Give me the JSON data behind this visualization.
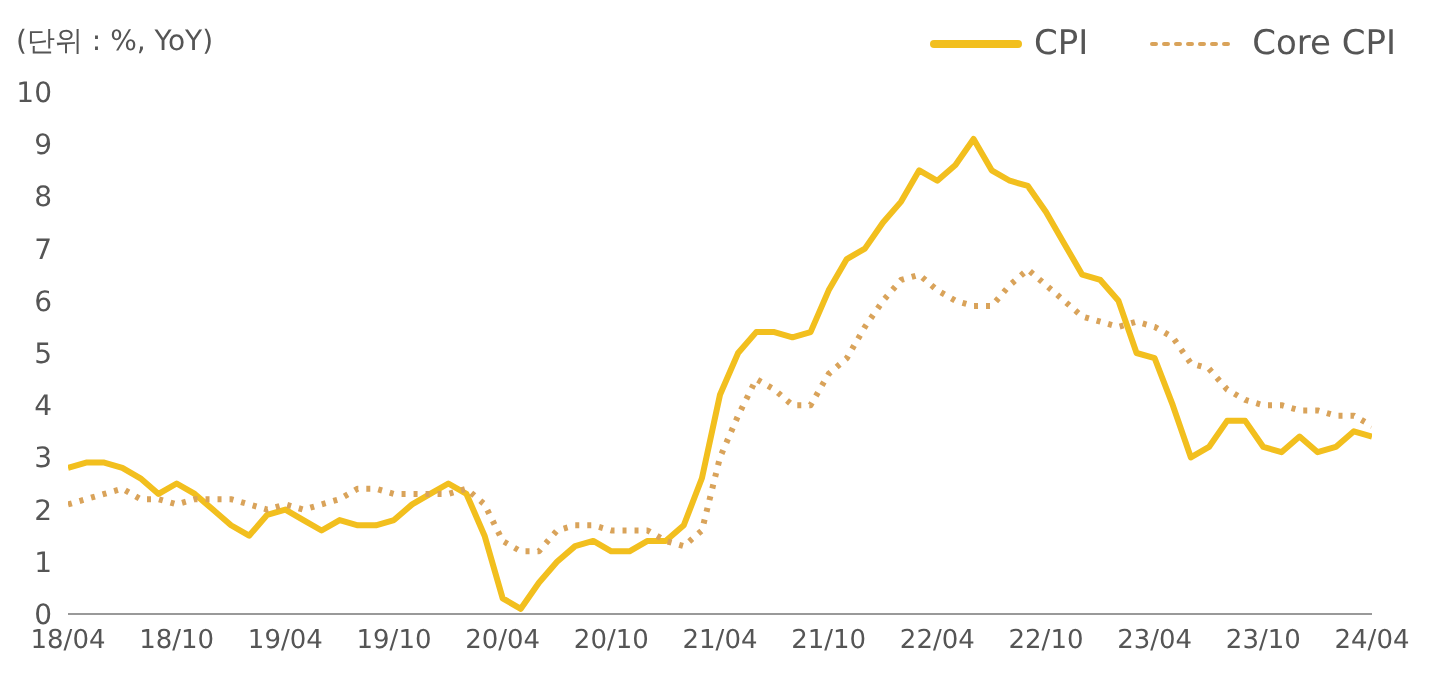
{
  "chart_data": {
    "type": "line",
    "ylabel": "(단위 : %, YoY)",
    "categories": [
      "18/04",
      null,
      null,
      null,
      null,
      null,
      "18/10",
      null,
      null,
      null,
      null,
      null,
      "19/04",
      null,
      null,
      null,
      null,
      null,
      "19/10",
      null,
      null,
      null,
      null,
      null,
      "20/04",
      null,
      null,
      null,
      null,
      null,
      "20/10",
      null,
      null,
      null,
      null,
      null,
      "21/04",
      null,
      null,
      null,
      null,
      null,
      "21/10",
      null,
      null,
      null,
      null,
      null,
      "22/04",
      null,
      null,
      null,
      null,
      null,
      "22/10",
      null,
      null,
      null,
      null,
      null,
      "23/04",
      null,
      null,
      null,
      null,
      null,
      "23/10",
      null,
      null,
      null,
      null,
      null,
      "24/04"
    ],
    "series": [
      {
        "name": "CPI",
        "color": "#f2bf1e",
        "line_style": "solid",
        "values": [
          2.8,
          2.9,
          2.9,
          2.8,
          2.6,
          2.3,
          2.5,
          2.3,
          2.0,
          1.7,
          1.5,
          1.9,
          2.0,
          1.8,
          1.6,
          1.8,
          1.7,
          1.7,
          1.8,
          2.1,
          2.3,
          2.5,
          2.3,
          1.5,
          0.3,
          0.1,
          0.6,
          1.0,
          1.3,
          1.4,
          1.2,
          1.2,
          1.4,
          1.4,
          1.7,
          2.6,
          4.2,
          5.0,
          5.4,
          5.4,
          5.3,
          5.4,
          6.2,
          6.8,
          7.0,
          7.5,
          7.9,
          8.5,
          8.3,
          8.6,
          9.1,
          8.5,
          8.3,
          8.2,
          7.7,
          7.1,
          6.5,
          6.4,
          6.0,
          5.0,
          4.9,
          4.0,
          3.0,
          3.2,
          3.7,
          3.7,
          3.2,
          3.1,
          3.4,
          3.1,
          3.2,
          3.5,
          3.4
        ]
      },
      {
        "name": "Core CPI",
        "color": "#d9a35a",
        "line_style": "dotted",
        "values": [
          2.1,
          2.2,
          2.3,
          2.4,
          2.2,
          2.2,
          2.1,
          2.2,
          2.2,
          2.2,
          2.1,
          2.0,
          2.1,
          2.0,
          2.1,
          2.2,
          2.4,
          2.4,
          2.3,
          2.3,
          2.3,
          2.3,
          2.4,
          2.1,
          1.4,
          1.2,
          1.2,
          1.6,
          1.7,
          1.7,
          1.6,
          1.6,
          1.6,
          1.4,
          1.3,
          1.6,
          3.0,
          3.8,
          4.5,
          4.3,
          4.0,
          4.0,
          4.6,
          4.9,
          5.5,
          6.0,
          6.4,
          6.5,
          6.2,
          6.0,
          5.9,
          5.9,
          6.3,
          6.6,
          6.3,
          6.0,
          5.7,
          5.6,
          5.5,
          5.6,
          5.5,
          5.3,
          4.8,
          4.7,
          4.3,
          4.1,
          4.0,
          4.0,
          3.9,
          3.9,
          3.8,
          3.8,
          3.6
        ]
      }
    ],
    "ylim": [
      0,
      10
    ],
    "yticks": [
      0,
      1,
      2,
      3,
      4,
      5,
      6,
      7,
      8,
      9,
      10
    ],
    "grid": false,
    "legend": "top right",
    "marker": "none"
  }
}
